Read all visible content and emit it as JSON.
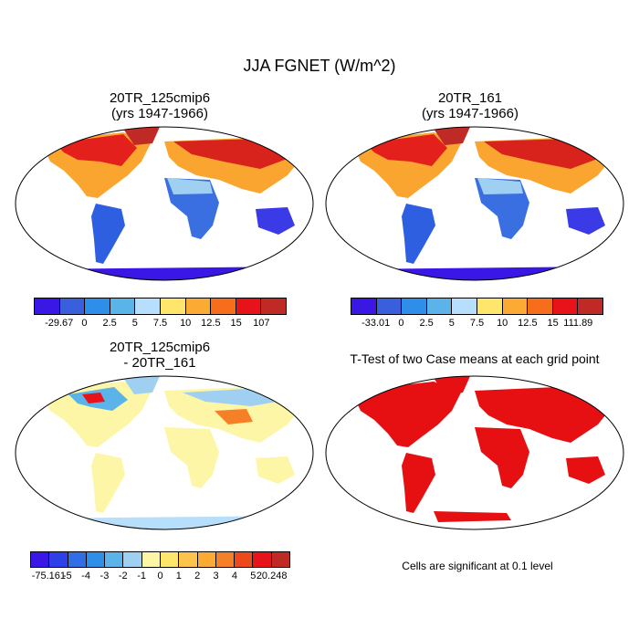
{
  "figure": {
    "title": "JJA FGNET (W/m^2)"
  },
  "panels": [
    {
      "id": "p1",
      "title_line1": "20TR_125cmip6",
      "title_line2": "(yrs 1947-1966)",
      "colorbar": {
        "colors": [
          "#3b17e6",
          "#3a5fdc",
          "#2f8ee8",
          "#5ab4ea",
          "#b7defa",
          "#fde66b",
          "#fbab33",
          "#f66d1c",
          "#e7121a",
          "#c02a26"
        ],
        "labels": [
          "-29.67",
          "0",
          "2.5",
          "5",
          "7.5",
          "10",
          "12.5",
          "15",
          "107"
        ]
      }
    },
    {
      "id": "p2",
      "title_line1": "20TR_161",
      "title_line2": "(yrs 1947-1966)",
      "colorbar": {
        "colors": [
          "#3b17e6",
          "#3a5fdc",
          "#2f8ee8",
          "#5ab4ea",
          "#b7defa",
          "#fde66b",
          "#fbab33",
          "#f66d1c",
          "#e7121a",
          "#c02a26"
        ],
        "labels": [
          "-33.01",
          "0",
          "2.5",
          "5",
          "7.5",
          "10",
          "12.5",
          "15",
          "111.89"
        ]
      }
    },
    {
      "id": "p3",
      "title_line1": "20TR_125cmip6",
      "title_line2": "- 20TR_161",
      "colorbar": {
        "colors": [
          "#3b17e6",
          "#2e40e8",
          "#2f6ee4",
          "#2f8ee8",
          "#5ab4ea",
          "#9fd0f2",
          "#fdf6a6",
          "#fde66b",
          "#fcc44a",
          "#fbab33",
          "#f68028",
          "#ed4a1c",
          "#e7121a",
          "#c02a26"
        ],
        "labels": [
          "-75.161",
          "-5",
          "-4",
          "-3",
          "-2",
          "-1",
          "0",
          "1",
          "2",
          "3",
          "4",
          "5",
          "20.248"
        ]
      }
    },
    {
      "id": "p4",
      "title_line1": "T-Test of two Case means at each grid point",
      "note": "Cells are significant at 0.1 level"
    }
  ]
}
